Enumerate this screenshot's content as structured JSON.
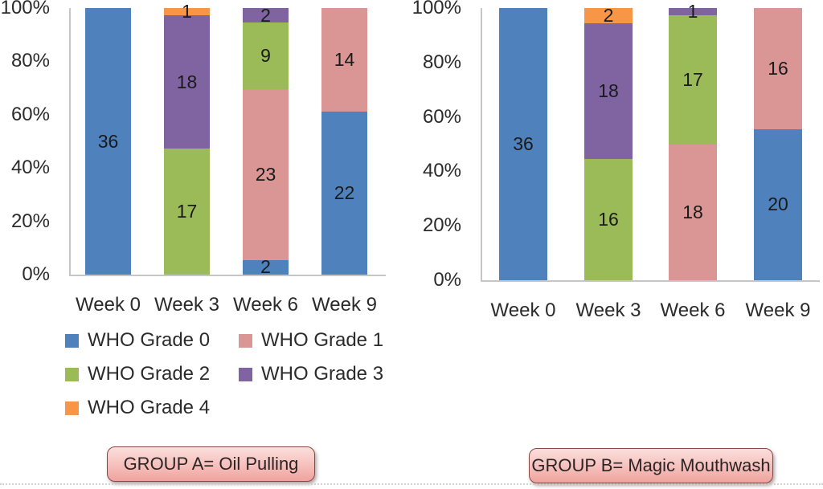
{
  "colors": {
    "grade0_blue": "#4F81BD",
    "grade1_pink": "#D99694",
    "grade2_green": "#9BBB59",
    "grade3_purple": "#8064A2",
    "grade4_orange": "#F79646",
    "axis_line": "#C6C6C6",
    "text": "#2B2B2B"
  },
  "legend": {
    "position": "bottom-left",
    "items": [
      {
        "label": "WHO Grade 0",
        "color": "#4F81BD"
      },
      {
        "label": "WHO Grade 1",
        "color": "#D99694"
      },
      {
        "label": "WHO Grade 2",
        "color": "#9BBB59"
      },
      {
        "label": "WHO Grade 3",
        "color": "#8064A2"
      },
      {
        "label": "WHO Grade 4",
        "color": "#F79646"
      }
    ]
  },
  "chart_data": [
    {
      "type": "bar",
      "stacked": true,
      "percent_axis": true,
      "grid": false,
      "group_label": "GROUP A= Oil Pulling",
      "categories": [
        "Week 0",
        "Week 3",
        "Week 6",
        "Week 9"
      ],
      "y_ticks": [
        "100%",
        "80%",
        "60%",
        "40%",
        "20%",
        "0%"
      ],
      "ylim": [
        0,
        100
      ],
      "total_per_bar": 36,
      "series": [
        {
          "name": "WHO Grade 0",
          "color": "#4F81BD",
          "values": [
            36,
            0,
            2,
            22
          ]
        },
        {
          "name": "WHO Grade 1",
          "color": "#D99694",
          "values": [
            0,
            0,
            23,
            14
          ]
        },
        {
          "name": "WHO Grade 2",
          "color": "#9BBB59",
          "values": [
            0,
            17,
            9,
            0
          ]
        },
        {
          "name": "WHO Grade 3",
          "color": "#8064A2",
          "values": [
            0,
            18,
            2,
            0
          ]
        },
        {
          "name": "WHO Grade 4",
          "color": "#F79646",
          "values": [
            0,
            1,
            0,
            0
          ]
        }
      ]
    },
    {
      "type": "bar",
      "stacked": true,
      "percent_axis": true,
      "grid": false,
      "group_label": "GROUP B= Magic Mouthwash",
      "categories": [
        "Week 0",
        "Week 3",
        "Week 6",
        "Week 9"
      ],
      "y_ticks": [
        "100%",
        "80%",
        "60%",
        "40%",
        "20%",
        "0%"
      ],
      "ylim": [
        0,
        100
      ],
      "total_per_bar": 36,
      "series": [
        {
          "name": "WHO Grade 0",
          "color": "#4F81BD",
          "values": [
            36,
            0,
            0,
            20
          ]
        },
        {
          "name": "WHO Grade 1",
          "color": "#D99694",
          "values": [
            0,
            0,
            18,
            16
          ]
        },
        {
          "name": "WHO Grade 2",
          "color": "#9BBB59",
          "values": [
            0,
            16,
            17,
            0
          ]
        },
        {
          "name": "WHO Grade 3",
          "color": "#8064A2",
          "values": [
            0,
            18,
            1,
            0
          ]
        },
        {
          "name": "WHO Grade 4",
          "color": "#F79646",
          "values": [
            0,
            2,
            0,
            0
          ]
        }
      ]
    }
  ]
}
